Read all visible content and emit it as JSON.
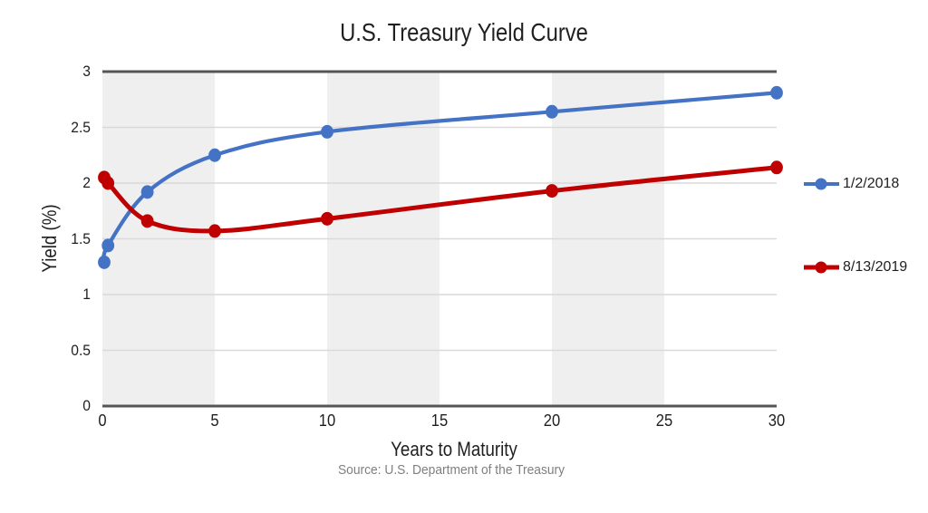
{
  "chart_data": {
    "type": "line",
    "title": "U.S. Treasury Yield Curve",
    "xlabel": "Years to Maturity",
    "ylabel": "Yield (%)",
    "source_note": "Source: U.S. Department of the Treasury",
    "x": [
      0.08,
      0.25,
      2,
      5,
      10,
      20,
      30
    ],
    "series": [
      {
        "name": "1/2/2018",
        "color": "#4472c4",
        "values": [
          1.29,
          1.44,
          1.92,
          2.25,
          2.46,
          2.64,
          2.81
        ]
      },
      {
        "name": "8/13/2019",
        "color": "#c00000",
        "values": [
          2.05,
          2.0,
          1.66,
          1.57,
          1.68,
          1.93,
          2.14
        ]
      }
    ],
    "xlim": [
      0,
      30
    ],
    "ylim": [
      0,
      3
    ],
    "x_ticks": [
      0,
      5,
      10,
      15,
      20,
      25,
      30
    ],
    "y_ticks": [
      0,
      0.5,
      1,
      1.5,
      2,
      2.5,
      3
    ],
    "grid": "horizontal-only",
    "legend_position": "right",
    "smoothed_lines": true,
    "band_color": "#efefef",
    "gridline_color": "#d9d9d9",
    "axis_line_color": "#555555",
    "text_color": "#1f1f1f",
    "source_text_color": "#7f7f7f"
  }
}
